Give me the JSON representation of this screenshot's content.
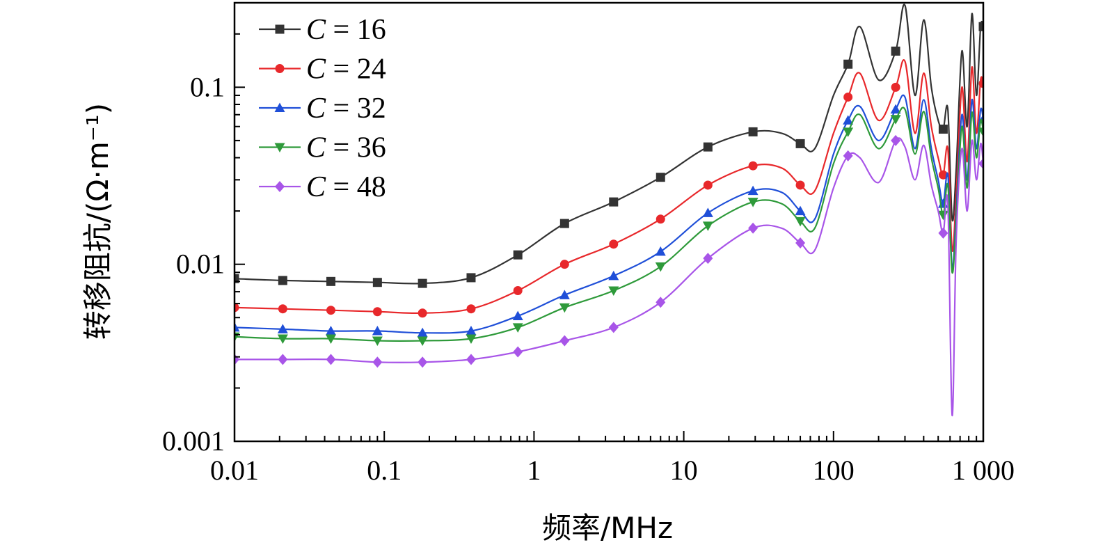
{
  "chart_data": {
    "type": "line",
    "xscale": "log",
    "yscale": "log",
    "xlim": [
      0.01,
      1000
    ],
    "ylim": [
      0.001,
      0.3
    ],
    "xlabel": "频率/MHz",
    "ylabel": "转移阻抗/(Ω·m⁻¹)",
    "x_ticks": [
      0.01,
      0.1,
      1,
      10,
      100,
      1000
    ],
    "x_tick_labels": [
      "0.01",
      "0.1",
      "1",
      "10",
      "100",
      "1 000"
    ],
    "y_ticks": [
      0.001,
      0.01,
      0.1
    ],
    "y_tick_labels": [
      "0.001",
      "0.01",
      "0.1"
    ],
    "grid": false,
    "legend_position": "top-left",
    "marker_x": [
      0.01,
      0.021,
      0.044,
      0.09,
      0.18,
      0.38,
      0.78,
      1.6,
      3.4,
      7,
      14.5,
      29,
      60,
      125,
      260,
      540,
      1000
    ],
    "x": [
      0.01,
      0.021,
      0.044,
      0.09,
      0.18,
      0.38,
      0.78,
      1.6,
      3.4,
      7,
      14.5,
      29,
      45,
      60,
      75,
      100,
      125,
      150,
      200,
      260,
      300,
      350,
      400,
      450,
      500,
      540,
      580,
      620,
      660,
      720,
      780,
      840,
      900,
      960,
      1000
    ],
    "series": [
      {
        "name": "C = 16",
        "legend_label": "16",
        "color": "#333333",
        "marker": "square",
        "values": [
          0.0083,
          0.0081,
          0.008,
          0.0079,
          0.0078,
          0.0084,
          0.0113,
          0.017,
          0.0225,
          0.031,
          0.046,
          0.056,
          0.055,
          0.048,
          0.045,
          0.09,
          0.135,
          0.22,
          0.11,
          0.16,
          0.29,
          0.09,
          0.24,
          0.1,
          0.065,
          0.058,
          0.075,
          0.018,
          0.035,
          0.16,
          0.06,
          0.26,
          0.09,
          0.22,
          0.22
        ]
      },
      {
        "name": "C = 24",
        "legend_label": "24",
        "color": "#e8282b",
        "marker": "circle",
        "values": [
          0.0057,
          0.0056,
          0.0055,
          0.0054,
          0.0053,
          0.0056,
          0.0071,
          0.01,
          0.013,
          0.018,
          0.028,
          0.036,
          0.035,
          0.028,
          0.026,
          0.055,
          0.088,
          0.12,
          0.065,
          0.1,
          0.14,
          0.055,
          0.12,
          0.06,
          0.04,
          0.032,
          0.045,
          0.012,
          0.025,
          0.1,
          0.038,
          0.13,
          0.055,
          0.11,
          0.105
        ]
      },
      {
        "name": "C = 32",
        "legend_label": "32",
        "color": "#1f4fd8",
        "marker": "triangle-up",
        "values": [
          0.0044,
          0.0043,
          0.0042,
          0.0042,
          0.0041,
          0.0042,
          0.0051,
          0.0067,
          0.0086,
          0.0118,
          0.0195,
          0.026,
          0.0255,
          0.02,
          0.018,
          0.042,
          0.065,
          0.078,
          0.05,
          0.075,
          0.088,
          0.045,
          0.085,
          0.045,
          0.03,
          0.022,
          0.032,
          0.0095,
          0.02,
          0.07,
          0.03,
          0.085,
          0.045,
          0.075,
          0.066
        ]
      },
      {
        "name": "C = 36",
        "legend_label": "36",
        "color": "#2e9a3a",
        "marker": "triangle-down",
        "values": [
          0.0039,
          0.0038,
          0.0038,
          0.0037,
          0.0037,
          0.0038,
          0.0044,
          0.0057,
          0.0071,
          0.0097,
          0.0165,
          0.0225,
          0.022,
          0.0175,
          0.016,
          0.037,
          0.056,
          0.07,
          0.045,
          0.066,
          0.075,
          0.042,
          0.073,
          0.04,
          0.027,
          0.019,
          0.028,
          0.009,
          0.018,
          0.06,
          0.027,
          0.072,
          0.04,
          0.065,
          0.056
        ]
      },
      {
        "name": "C = 48",
        "legend_label": "48",
        "color": "#a855e8",
        "marker": "diamond",
        "values": [
          0.0029,
          0.0029,
          0.0029,
          0.0028,
          0.0028,
          0.0029,
          0.0032,
          0.0037,
          0.0044,
          0.0061,
          0.0108,
          0.016,
          0.016,
          0.0132,
          0.012,
          0.027,
          0.041,
          0.04,
          0.029,
          0.05,
          0.046,
          0.03,
          0.047,
          0.028,
          0.02,
          0.015,
          0.022,
          0.0014,
          0.014,
          0.045,
          0.02,
          0.05,
          0.03,
          0.048,
          0.037
        ]
      }
    ]
  },
  "legend_var": "C",
  "legend_eq": "="
}
